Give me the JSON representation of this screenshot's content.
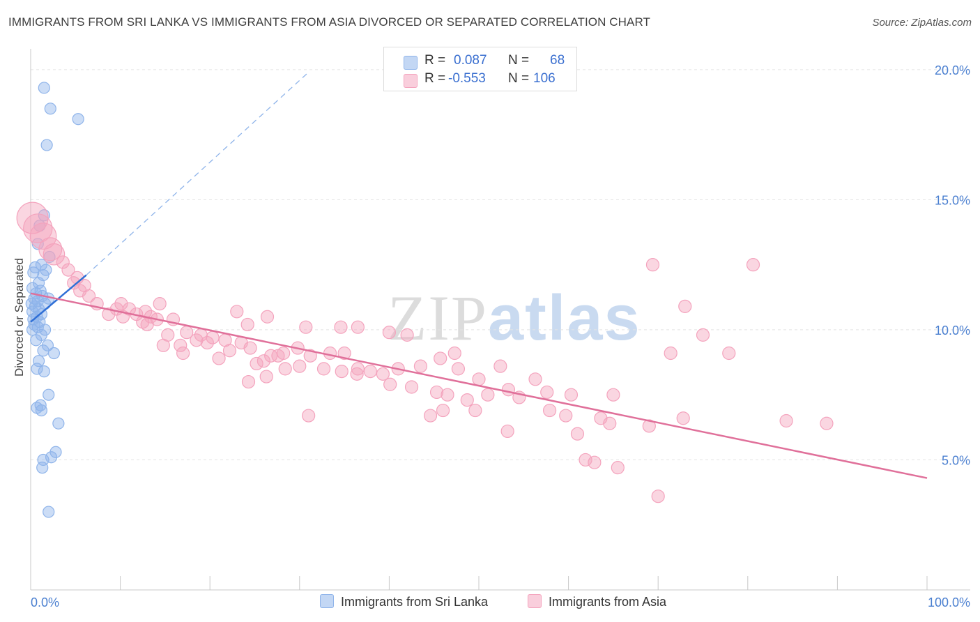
{
  "title": "IMMIGRANTS FROM SRI LANKA VS IMMIGRANTS FROM ASIA DIVORCED OR SEPARATED CORRELATION CHART",
  "source": "Source: ZipAtlas.com",
  "watermark": {
    "zip": "ZIP",
    "atlas": "atlas"
  },
  "legend": {
    "rows": [
      {
        "r_label": "R =",
        "r_value": "0.087",
        "n_label": "N =",
        "n_value": "68",
        "color": "#8fb4ea"
      },
      {
        "r_label": "R =",
        "r_value": "-0.553",
        "n_label": "N =",
        "n_value": "106",
        "color": "#f4a3bd"
      }
    ]
  },
  "chart_data": {
    "type": "scatter",
    "title": "IMMIGRANTS FROM SRI LANKA VS IMMIGRANTS FROM ASIA DIVORCED OR SEPARATED CORRELATION CHART",
    "xlabel": "",
    "ylabel": "Divorced or Separated",
    "x_ticks": [
      "0.0%",
      "100.0%"
    ],
    "y_ticks": [
      "5.0%",
      "10.0%",
      "15.0%",
      "20.0%"
    ],
    "xlim": [
      0,
      100
    ],
    "ylim": [
      0,
      20.8
    ],
    "grid": true,
    "series": [
      {
        "name": "Immigrants from Sri Lanka",
        "color": "#8fb4ea",
        "line_color": "#2f6fd6",
        "points": [
          [
            1.5,
            19.3
          ],
          [
            2.2,
            18.5
          ],
          [
            5.3,
            18.1
          ],
          [
            1.8,
            17.1
          ],
          [
            1.5,
            14.4
          ],
          [
            1.0,
            14.0
          ],
          [
            0.8,
            13.3
          ],
          [
            2.1,
            12.8
          ],
          [
            0.5,
            12.4
          ],
          [
            1.2,
            12.5
          ],
          [
            1.7,
            12.3
          ],
          [
            0.3,
            12.2
          ],
          [
            1.4,
            12.1
          ],
          [
            0.9,
            11.8
          ],
          [
            0.2,
            11.6
          ],
          [
            1.1,
            11.5
          ],
          [
            0.6,
            11.4
          ],
          [
            1.3,
            11.3
          ],
          [
            0.4,
            11.2
          ],
          [
            2.0,
            11.2
          ],
          [
            0.8,
            11.1
          ],
          [
            0.1,
            11.0
          ],
          [
            1.6,
            11.0
          ],
          [
            0.5,
            10.9
          ],
          [
            0.9,
            10.8
          ],
          [
            0.2,
            10.7
          ],
          [
            1.2,
            10.6
          ],
          [
            0.7,
            10.5
          ],
          [
            0.3,
            10.4
          ],
          [
            1.0,
            10.3
          ],
          [
            0.4,
            10.2
          ],
          [
            0.8,
            10.1
          ],
          [
            1.6,
            10.0
          ],
          [
            0.2,
            10.0
          ],
          [
            1.2,
            9.8
          ],
          [
            0.6,
            9.6
          ],
          [
            1.9,
            9.4
          ],
          [
            1.4,
            9.2
          ],
          [
            2.6,
            9.1
          ],
          [
            0.9,
            8.8
          ],
          [
            0.7,
            8.5
          ],
          [
            1.5,
            8.4
          ],
          [
            2.0,
            7.5
          ],
          [
            1.1,
            7.1
          ],
          [
            0.7,
            7.0
          ],
          [
            1.2,
            6.9
          ],
          [
            3.1,
            6.4
          ],
          [
            2.8,
            5.3
          ],
          [
            2.3,
            5.1
          ],
          [
            1.4,
            5.0
          ],
          [
            1.3,
            4.7
          ],
          [
            2.0,
            3.0
          ]
        ],
        "trend": {
          "x0": 0,
          "y0": 10.3,
          "x1": 6.2,
          "y1": 12.1,
          "dash_x1": 31,
          "dash_y1": 19.9
        }
      },
      {
        "name": "Immigrants from Asia",
        "color": "#f4a3bd",
        "line_color": "#e0709a",
        "points": [
          [
            0.2,
            14.3
          ],
          [
            0.8,
            13.9
          ],
          [
            1.4,
            13.6
          ],
          [
            2.2,
            13.1
          ],
          [
            2.6,
            12.9
          ],
          [
            3.6,
            12.6
          ],
          [
            4.2,
            12.3
          ],
          [
            5.2,
            12.0
          ],
          [
            4.8,
            11.8
          ],
          [
            6.0,
            11.7
          ],
          [
            5.5,
            11.5
          ],
          [
            6.5,
            11.3
          ],
          [
            7.4,
            11.0
          ],
          [
            10.1,
            11.0
          ],
          [
            14.4,
            11.0
          ],
          [
            9.6,
            10.8
          ],
          [
            11.0,
            10.8
          ],
          [
            12.8,
            10.7
          ],
          [
            8.7,
            10.6
          ],
          [
            11.8,
            10.6
          ],
          [
            13.4,
            10.5
          ],
          [
            14.1,
            10.4
          ],
          [
            10.3,
            10.5
          ],
          [
            12.5,
            10.3
          ],
          [
            15.9,
            10.4
          ],
          [
            13.0,
            10.2
          ],
          [
            23.0,
            10.7
          ],
          [
            24.2,
            10.2
          ],
          [
            15.3,
            9.8
          ],
          [
            17.4,
            9.9
          ],
          [
            19.0,
            9.8
          ],
          [
            20.3,
            9.7
          ],
          [
            18.5,
            9.6
          ],
          [
            19.7,
            9.5
          ],
          [
            21.7,
            9.6
          ],
          [
            23.5,
            9.5
          ],
          [
            16.7,
            9.4
          ],
          [
            14.8,
            9.4
          ],
          [
            22.2,
            9.2
          ],
          [
            24.5,
            9.3
          ],
          [
            26.8,
            9.0
          ],
          [
            28.2,
            9.1
          ],
          [
            29.8,
            9.3
          ],
          [
            27.6,
            9.0
          ],
          [
            31.2,
            9.0
          ],
          [
            33.4,
            9.1
          ],
          [
            35.0,
            9.1
          ],
          [
            17.0,
            9.1
          ],
          [
            21.0,
            8.9
          ],
          [
            26.0,
            8.8
          ],
          [
            25.2,
            8.7
          ],
          [
            30.0,
            8.6
          ],
          [
            28.4,
            8.5
          ],
          [
            32.7,
            8.5
          ],
          [
            34.7,
            8.4
          ],
          [
            36.5,
            8.5
          ],
          [
            37.9,
            8.4
          ],
          [
            39.3,
            8.3
          ],
          [
            41.0,
            8.5
          ],
          [
            43.5,
            8.6
          ],
          [
            45.7,
            8.9
          ],
          [
            47.7,
            8.5
          ],
          [
            50.0,
            8.1
          ],
          [
            52.4,
            8.6
          ],
          [
            56.3,
            8.1
          ],
          [
            24.3,
            8.0
          ],
          [
            26.3,
            8.2
          ],
          [
            36.4,
            8.3
          ],
          [
            40.1,
            7.9
          ],
          [
            42.5,
            7.8
          ],
          [
            45.3,
            7.6
          ],
          [
            46.5,
            7.5
          ],
          [
            48.7,
            7.3
          ],
          [
            51.0,
            7.5
          ],
          [
            53.3,
            7.7
          ],
          [
            54.5,
            7.4
          ],
          [
            57.6,
            7.6
          ],
          [
            60.3,
            7.5
          ],
          [
            65.0,
            7.5
          ],
          [
            46.0,
            6.9
          ],
          [
            49.6,
            6.9
          ],
          [
            57.9,
            6.9
          ],
          [
            59.7,
            6.7
          ],
          [
            63.6,
            6.6
          ],
          [
            64.6,
            6.4
          ],
          [
            69.0,
            6.3
          ],
          [
            72.8,
            6.6
          ],
          [
            84.3,
            6.5
          ],
          [
            88.8,
            6.4
          ],
          [
            31.0,
            6.7
          ],
          [
            44.6,
            6.7
          ],
          [
            53.2,
            6.1
          ],
          [
            61.0,
            6.0
          ],
          [
            61.9,
            5.0
          ],
          [
            62.9,
            4.9
          ],
          [
            65.5,
            4.7
          ],
          [
            70.0,
            3.6
          ],
          [
            69.4,
            12.5
          ],
          [
            80.6,
            12.5
          ],
          [
            73.0,
            10.9
          ],
          [
            75.0,
            9.8
          ],
          [
            77.9,
            9.1
          ],
          [
            71.4,
            9.1
          ],
          [
            47.3,
            9.1
          ],
          [
            26.4,
            10.5
          ],
          [
            30.7,
            10.1
          ],
          [
            34.6,
            10.1
          ],
          [
            36.5,
            10.1
          ],
          [
            40.0,
            9.9
          ],
          [
            42.0,
            9.8
          ]
        ],
        "trend": {
          "x0": 0,
          "y0": 11.4,
          "x1": 100,
          "y1": 4.3
        }
      }
    ]
  },
  "bottom_legend": {
    "items": [
      {
        "label": "Immigrants from Sri Lanka",
        "color": "#8fb4ea"
      },
      {
        "label": "Immigrants from Asia",
        "color": "#f4a3bd"
      }
    ]
  }
}
